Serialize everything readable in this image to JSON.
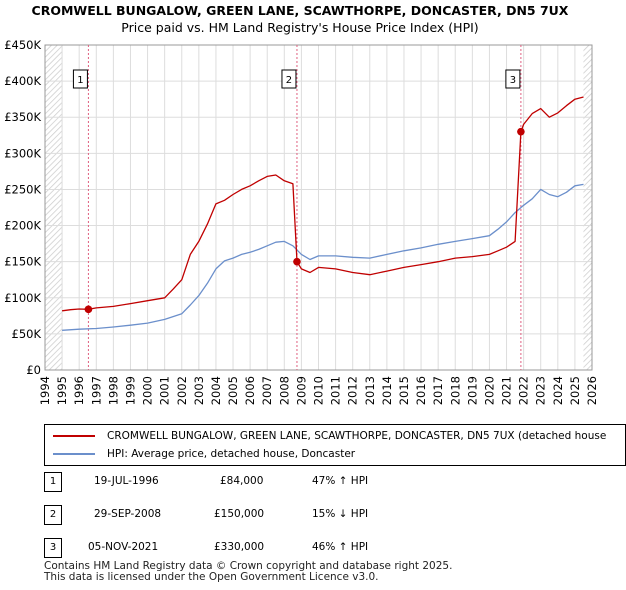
{
  "title_line1": "CROMWELL BUNGALOW, GREEN LANE, SCAWTHORPE, DONCASTER, DN5 7UX",
  "title_line2": "Price paid vs. HM Land Registry's House Price Index (HPI)",
  "colors": {
    "property": "#c00000",
    "hpi": "#6b8fcb",
    "grid": "#dddddd",
    "marker_line": "#e06080",
    "hatch": "#cccccc"
  },
  "chart_data": {
    "type": "line",
    "title": "CROMWELL BUNGALOW, GREEN LANE, SCAWTHORPE, DONCASTER, DN5 7UX",
    "subtitle": "Price paid vs. HM Land Registry's House Price Index (HPI)",
    "xlabel": "",
    "ylabel": "",
    "xlim": [
      1994,
      2026
    ],
    "ylim": [
      0,
      450000
    ],
    "grid": true,
    "x_ticks": [
      1994,
      1995,
      1996,
      1997,
      1998,
      1999,
      2000,
      2001,
      2002,
      2003,
      2004,
      2005,
      2006,
      2007,
      2008,
      2009,
      2010,
      2011,
      2012,
      2013,
      2014,
      2015,
      2016,
      2017,
      2018,
      2019,
      2020,
      2021,
      2022,
      2023,
      2024,
      2025,
      2026
    ],
    "y_ticks": [
      {
        "value": 0,
        "label": "£0"
      },
      {
        "value": 50000,
        "label": "£50K"
      },
      {
        "value": 100000,
        "label": "£100K"
      },
      {
        "value": 150000,
        "label": "£150K"
      },
      {
        "value": 200000,
        "label": "£200K"
      },
      {
        "value": 250000,
        "label": "£250K"
      },
      {
        "value": 300000,
        "label": "£300K"
      },
      {
        "value": 350000,
        "label": "£350K"
      },
      {
        "value": 400000,
        "label": "£400K"
      },
      {
        "value": 450000,
        "label": "£450K"
      }
    ],
    "data_start": 1995,
    "data_end": 2025.5,
    "series": [
      {
        "name": "CROMWELL BUNGALOW, GREEN LANE, SCAWTHORPE, DONCASTER, DN5 7UX (detached house)",
        "color": "#c00000",
        "x": [
          1995.0,
          1995.5,
          1996.0,
          1996.54,
          1997.0,
          1998.0,
          1999.0,
          2000.0,
          2001.0,
          2001.5,
          2002.0,
          2002.5,
          2003.0,
          2003.5,
          2004.0,
          2004.5,
          2005.0,
          2005.5,
          2006.0,
          2006.5,
          2007.0,
          2007.5,
          2008.0,
          2008.5,
          2008.74,
          2009.0,
          2009.5,
          2010.0,
          2011.0,
          2012.0,
          2013.0,
          2014.0,
          2015.0,
          2016.0,
          2017.0,
          2018.0,
          2019.0,
          2020.0,
          2020.5,
          2021.0,
          2021.5,
          2021.84,
          2022.0,
          2022.5,
          2023.0,
          2023.5,
          2024.0,
          2024.5,
          2025.0,
          2025.5
        ],
        "y": [
          82000,
          83500,
          84500,
          84000,
          86000,
          88000,
          92000,
          96000,
          100000,
          112000,
          125000,
          160000,
          178000,
          202000,
          230000,
          235000,
          243000,
          250000,
          255000,
          262000,
          268000,
          270000,
          262000,
          258000,
          150000,
          140000,
          135000,
          142000,
          140000,
          135000,
          132000,
          137000,
          142000,
          146000,
          150000,
          155000,
          157000,
          160000,
          165000,
          170000,
          178000,
          330000,
          340000,
          355000,
          362000,
          350000,
          356000,
          366000,
          375000,
          378000
        ]
      },
      {
        "name": "HPI: Average price, detached house, Doncaster",
        "color": "#6b8fcb",
        "x": [
          1995.0,
          1996.0,
          1997.0,
          1998.0,
          1999.0,
          2000.0,
          2001.0,
          2002.0,
          2002.5,
          2003.0,
          2003.5,
          2004.0,
          2004.5,
          2005.0,
          2005.5,
          2006.0,
          2006.5,
          2007.0,
          2007.5,
          2008.0,
          2008.5,
          2009.0,
          2009.5,
          2010.0,
          2011.0,
          2012.0,
          2013.0,
          2014.0,
          2015.0,
          2016.0,
          2017.0,
          2018.0,
          2019.0,
          2020.0,
          2020.5,
          2021.0,
          2021.5,
          2022.0,
          2022.5,
          2023.0,
          2023.5,
          2024.0,
          2024.5,
          2025.0,
          2025.5
        ],
        "y": [
          55000,
          56500,
          57500,
          59500,
          62000,
          65000,
          70000,
          78000,
          90000,
          103000,
          120000,
          140000,
          151000,
          155000,
          160000,
          163000,
          167000,
          172000,
          177000,
          178000,
          172000,
          160000,
          153000,
          158000,
          158000,
          156000,
          155000,
          160000,
          165000,
          169000,
          174000,
          178000,
          182000,
          186000,
          195000,
          205000,
          218000,
          228000,
          237000,
          250000,
          243000,
          240000,
          246000,
          255000,
          257000
        ]
      }
    ],
    "sales": [
      {
        "label": "1",
        "x": 1996.54,
        "y": 84000
      },
      {
        "label": "2",
        "x": 2008.74,
        "y": 150000
      },
      {
        "label": "3",
        "x": 2021.84,
        "y": 330000
      }
    ]
  },
  "legend": {
    "property_label": "CROMWELL BUNGALOW, GREEN LANE, SCAWTHORPE, DONCASTER, DN5 7UX (detached house",
    "hpi_label": "HPI: Average price, detached house, Doncaster"
  },
  "sales_table": [
    {
      "num": "1",
      "date": "19-JUL-1996",
      "price": "£84,000",
      "hpi": "47% ↑ HPI"
    },
    {
      "num": "2",
      "date": "29-SEP-2008",
      "price": "£150,000",
      "hpi": "15% ↓ HPI"
    },
    {
      "num": "3",
      "date": "05-NOV-2021",
      "price": "£330,000",
      "hpi": "46% ↑ HPI"
    }
  ],
  "footer_line1": "Contains HM Land Registry data © Crown copyright and database right 2025.",
  "footer_line2": "This data is licensed under the Open Government Licence v3.0."
}
